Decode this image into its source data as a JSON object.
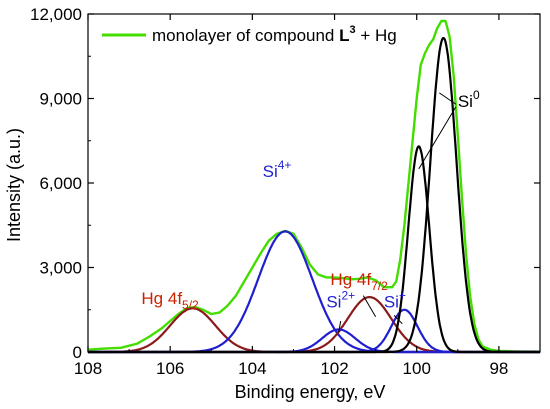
{
  "chart_data": {
    "type": "line",
    "xlabel": "Binding energy, eV",
    "ylabel": "Intensity (a.u.)",
    "xlim": [
      108,
      97
    ],
    "ylim": [
      0,
      12000
    ],
    "x_reversed": true,
    "x_ticks": [
      {
        "value": 108,
        "label": "108"
      },
      {
        "value": 106,
        "label": "106"
      },
      {
        "value": 104,
        "label": "104"
      },
      {
        "value": 102,
        "label": "102"
      },
      {
        "value": 100,
        "label": "100"
      },
      {
        "value": 98,
        "label": "98"
      }
    ],
    "y_ticks": [
      {
        "value": 0,
        "label": "0"
      },
      {
        "value": 3000,
        "label": "3,000"
      },
      {
        "value": 6000,
        "label": "6,000"
      },
      {
        "value": 9000,
        "label": "9,000"
      },
      {
        "value": 12000,
        "label": "12,000"
      }
    ],
    "legend": {
      "placement": "top-left",
      "text_before": "monolayer of compound ",
      "text_bold": "L",
      "text_sup": "3",
      "text_after": " + Hg"
    },
    "series": [
      {
        "name": "monolayer of compound L3 + Hg",
        "color": "#44dd00",
        "x": [
          108,
          107.6,
          107.2,
          106.8,
          106.5,
          106.2,
          106.0,
          105.8,
          105.6,
          105.4,
          105.2,
          105.0,
          104.8,
          104.6,
          104.4,
          104.2,
          104.0,
          103.8,
          103.6,
          103.4,
          103.2,
          103.0,
          102.8,
          102.6,
          102.4,
          102.2,
          102.0,
          101.8,
          101.6,
          101.4,
          101.2,
          101.0,
          100.8,
          100.6,
          100.5,
          100.4,
          100.3,
          100.2,
          100.1,
          100.0,
          99.9,
          99.8,
          99.7,
          99.6,
          99.5,
          99.4,
          99.3,
          99.2,
          99.1,
          99.0,
          98.9,
          98.8,
          98.7,
          98.6,
          98.5,
          98.4,
          98.2,
          98.0,
          97.6,
          97.0
        ],
        "y": [
          80,
          120,
          150,
          300,
          550,
          850,
          1100,
          1350,
          1550,
          1600,
          1500,
          1350,
          1400,
          1650,
          2000,
          2500,
          3000,
          3500,
          3950,
          4200,
          4300,
          4200,
          3700,
          3100,
          2750,
          2650,
          2650,
          2620,
          2580,
          2600,
          2650,
          2550,
          2300,
          2300,
          2500,
          3300,
          4500,
          6000,
          7500,
          9000,
          10200,
          10600,
          10900,
          11100,
          11500,
          11750,
          11750,
          11200,
          9800,
          7700,
          5500,
          3500,
          2000,
          1000,
          450,
          200,
          80,
          40,
          20,
          10
        ]
      },
      {
        "name": "Hg 4f5/2",
        "color": "#8b1a1a",
        "peak": {
          "center": 105.45,
          "height": 1550,
          "fwhm": 1.3
        },
        "label": {
          "text": "Hg 4f",
          "sub": "5/2",
          "color": "#cc2200",
          "at_x": 106.7,
          "at_y": 1700
        }
      },
      {
        "name": "Si4+",
        "color": "#1f1fd0",
        "peak": {
          "center": 103.2,
          "height": 4280,
          "fwhm": 1.55
        },
        "label": {
          "text": "Si",
          "sup": "4+",
          "color": "#1f1fd0",
          "at_x": 103.4,
          "at_y": 3900,
          "anchor": "middle",
          "y_offset": -65
        }
      },
      {
        "name": "Hg 4f7/2",
        "color": "#8b1a1a",
        "peak": {
          "center": 101.15,
          "height": 1950,
          "fwhm": 1.25
        },
        "label": {
          "text": "Hg 4f",
          "sub": "7/2",
          "color": "#cc2200",
          "at_x": 102.1,
          "at_y": 2200,
          "anchor": "start",
          "y_offset": -5
        }
      },
      {
        "name": "Si2+",
        "color": "#1f1fd0",
        "peak": {
          "center": 101.9,
          "height": 800,
          "fwhm": 0.95
        },
        "label": {
          "text": "Si",
          "sup": "2+",
          "color": "#1f1fd0",
          "at_x": 102.2,
          "at_y": 1400,
          "anchor": "start",
          "y_offset": -5
        }
      },
      {
        "name": "Si+",
        "color": "#1f1fd0",
        "peak": {
          "center": 100.3,
          "height": 1500,
          "fwhm": 0.75
        },
        "label": {
          "text": "Si",
          "sup": "+",
          "color": "#1f1fd0",
          "at_x": 100.8,
          "at_y": 1400,
          "anchor": "start",
          "y_offset": -5
        }
      },
      {
        "name": "Si0 (2p1/2)",
        "color": "#000000",
        "peak": {
          "center": 99.95,
          "height": 7300,
          "fwhm": 0.6
        }
      },
      {
        "name": "Si0 (2p3/2)",
        "color": "#000000",
        "peak": {
          "center": 99.35,
          "height": 11150,
          "fwhm": 0.75
        }
      }
    ],
    "si0_label": {
      "text": "Si",
      "sup": "0",
      "color": "#000000",
      "at_x": 99.0,
      "at_y": 8700
    },
    "si0_leaders": [
      {
        "from": [
          99.05,
          8700
        ],
        "to": [
          99.95,
          6500
        ]
      },
      {
        "from": [
          99.05,
          8800
        ],
        "to": [
          99.45,
          9200
        ]
      }
    ],
    "marker_leaders": [
      {
        "from": [
          101.3,
          2000
        ],
        "to": [
          101.0,
          1250
        ],
        "color": "#000000"
      }
    ],
    "grid": false
  }
}
